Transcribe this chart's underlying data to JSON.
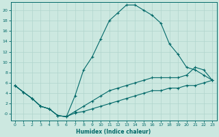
{
  "xlabel": "Humidex (Indice chaleur)",
  "bg_color": "#cce8e0",
  "line_color": "#006868",
  "grid_color_major": "#b0d4cc",
  "grid_color_minor": "#b0d4cc",
  "xlim": [
    -0.5,
    23.5
  ],
  "ylim": [
    -1.2,
    21.5
  ],
  "xticks": [
    0,
    1,
    2,
    3,
    4,
    5,
    6,
    7,
    8,
    9,
    10,
    11,
    12,
    13,
    14,
    15,
    16,
    17,
    18,
    19,
    20,
    21,
    22,
    23
  ],
  "yticks": [
    0,
    2,
    4,
    6,
    8,
    10,
    12,
    14,
    16,
    18,
    20
  ],
  "line1_x": [
    0,
    1,
    2,
    3,
    4,
    5,
    6,
    7,
    8,
    9,
    10,
    11,
    12,
    13,
    14,
    15,
    16,
    17,
    18,
    19,
    20,
    21,
    22,
    23
  ],
  "line1_y": [
    5.5,
    4.2,
    3.0,
    1.5,
    1.0,
    -0.3,
    -0.5,
    3.5,
    8.5,
    11.0,
    14.5,
    18.0,
    19.5,
    21.0,
    21.0,
    20.0,
    19.0,
    17.5,
    13.5,
    11.5,
    9.0,
    8.5,
    7.5,
    6.5
  ],
  "line2_x": [
    0,
    1,
    2,
    3,
    4,
    5,
    6,
    7,
    8,
    9,
    10,
    11,
    12,
    13,
    14,
    15,
    16,
    17,
    18,
    19,
    20,
    21,
    22,
    23
  ],
  "line2_y": [
    5.5,
    4.2,
    3.0,
    1.5,
    1.0,
    -0.3,
    -0.5,
    0.5,
    1.5,
    2.5,
    3.5,
    4.5,
    5.0,
    5.5,
    6.0,
    6.5,
    7.0,
    7.0,
    7.0,
    7.0,
    7.5,
    9.0,
    8.5,
    6.5
  ],
  "line3_x": [
    0,
    1,
    2,
    3,
    4,
    5,
    6,
    7,
    8,
    9,
    10,
    11,
    12,
    13,
    14,
    15,
    16,
    17,
    18,
    19,
    20,
    21,
    22,
    23
  ],
  "line3_y": [
    5.5,
    4.2,
    3.0,
    1.5,
    1.0,
    -0.3,
    -0.5,
    0.2,
    0.5,
    1.0,
    1.5,
    2.0,
    2.5,
    3.0,
    3.5,
    4.0,
    4.5,
    4.5,
    5.0,
    5.0,
    5.5,
    5.5,
    6.0,
    6.5
  ]
}
